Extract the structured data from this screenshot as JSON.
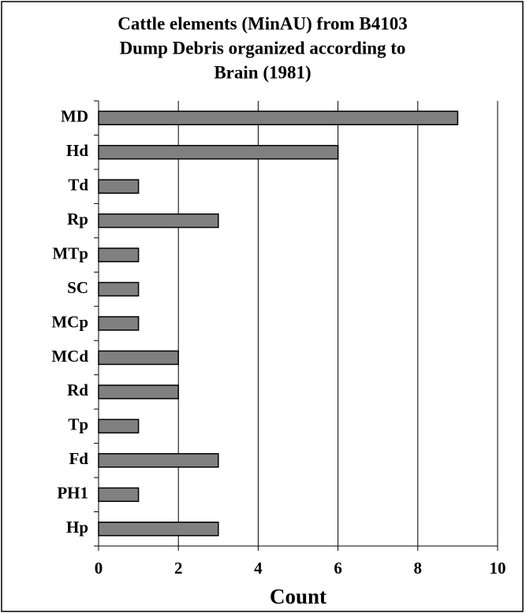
{
  "chart_data": {
    "type": "bar",
    "orientation": "horizontal",
    "title": [
      "Cattle elements (MinAU) from B4103",
      "Dump Debris organized according to",
      "Brain (1981)"
    ],
    "x_label": "Count",
    "categories": [
      "MD",
      "Hd",
      "Td",
      "Rp",
      "MTp",
      "SC",
      "MCp",
      "MCd",
      "Rd",
      "Tp",
      "Fd",
      "PH1",
      "Hp"
    ],
    "values": [
      9,
      6,
      1,
      3,
      1,
      1,
      1,
      2,
      2,
      1,
      3,
      1,
      3
    ],
    "color": "#808080",
    "xlim": [
      0,
      10
    ],
    "xticks": [
      0,
      2,
      4,
      6,
      8,
      10
    ],
    "grid": true
  }
}
